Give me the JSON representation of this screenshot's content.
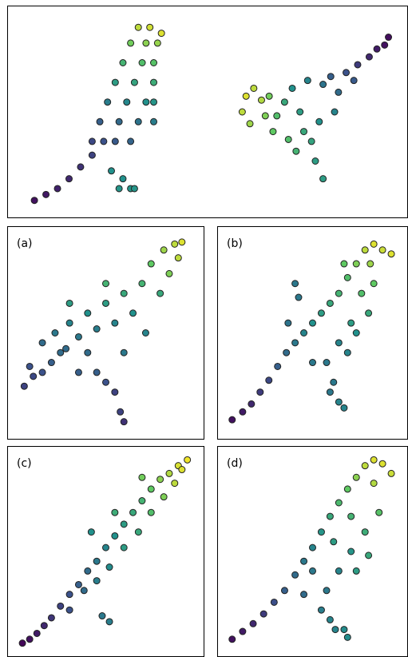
{
  "chart_data": [
    {
      "type": "scatter",
      "colormap": "viridis",
      "xlim": [
        0,
        100
      ],
      "ylim": [
        0,
        100
      ],
      "x": [
        5,
        8,
        11,
        14,
        17,
        20,
        23,
        20,
        26,
        30,
        22,
        27,
        32,
        36,
        24,
        29,
        34,
        36,
        26,
        31,
        36,
        28,
        33,
        36,
        30,
        34,
        37,
        32,
        35,
        38,
        25,
        28,
        27,
        30,
        31,
        59,
        60,
        62,
        64,
        61,
        65,
        67,
        66,
        70,
        72,
        74,
        75,
        73,
        77,
        78,
        80,
        79,
        76,
        80,
        82,
        84,
        83,
        86,
        89,
        92,
        94,
        96,
        97,
        88,
        68,
        71
      ],
      "y": [
        5,
        8,
        11,
        16,
        22,
        28,
        35,
        35,
        35,
        35,
        45,
        45,
        45,
        45,
        55,
        55,
        55,
        55,
        65,
        65,
        65,
        75,
        75,
        75,
        85,
        85,
        85,
        93,
        93,
        90,
        20,
        16,
        11,
        11,
        11,
        50,
        58,
        62,
        56,
        44,
        48,
        40,
        58,
        55,
        62,
        50,
        40,
        30,
        35,
        25,
        16,
        45,
        66,
        64,
        68,
        60,
        50,
        70,
        74,
        78,
        82,
        84,
        88,
        66,
        48,
        36
      ],
      "values": [
        0.05,
        0.07,
        0.1,
        0.12,
        0.15,
        0.2,
        0.25,
        0.22,
        0.28,
        0.32,
        0.3,
        0.34,
        0.38,
        0.42,
        0.42,
        0.46,
        0.5,
        0.52,
        0.55,
        0.58,
        0.62,
        0.65,
        0.7,
        0.72,
        0.78,
        0.82,
        0.84,
        0.9,
        0.93,
        0.95,
        0.5,
        0.5,
        0.52,
        0.52,
        0.52,
        0.9,
        0.95,
        0.9,
        0.88,
        0.85,
        0.8,
        0.75,
        0.78,
        0.6,
        0.5,
        0.55,
        0.6,
        0.65,
        0.58,
        0.55,
        0.55,
        0.5,
        0.45,
        0.38,
        0.3,
        0.35,
        0.45,
        0.25,
        0.18,
        0.12,
        0.08,
        0.05,
        0.04,
        0.28,
        0.7,
        0.7
      ]
    },
    {
      "type": "scatter",
      "title": "(a)",
      "colormap": "viridis",
      "xlim": [
        0,
        100
      ],
      "ylim": [
        0,
        100
      ],
      "x": [
        5,
        10,
        8,
        15,
        20,
        25,
        15,
        22,
        30,
        28,
        35,
        40,
        45,
        50,
        55,
        60,
        65,
        70,
        72,
        75,
        80,
        82,
        88,
        92,
        90,
        85,
        45,
        50,
        55,
        58,
        60,
        35,
        40,
        60,
        30,
        50
      ],
      "y": [
        23,
        28,
        33,
        30,
        35,
        40,
        45,
        50,
        55,
        42,
        48,
        60,
        52,
        65,
        55,
        70,
        60,
        75,
        50,
        85,
        70,
        92,
        95,
        96,
        88,
        80,
        30,
        25,
        20,
        10,
        5,
        30,
        40,
        40,
        65,
        75
      ],
      "values": [
        0.2,
        0.22,
        0.25,
        0.25,
        0.3,
        0.35,
        0.35,
        0.4,
        0.45,
        0.35,
        0.4,
        0.5,
        0.42,
        0.55,
        0.45,
        0.6,
        0.5,
        0.65,
        0.45,
        0.75,
        0.6,
        0.85,
        0.9,
        0.95,
        0.9,
        0.8,
        0.3,
        0.25,
        0.2,
        0.2,
        0.15,
        0.3,
        0.35,
        0.4,
        0.55,
        0.65
      ]
    },
    {
      "type": "scatter",
      "title": "(b)",
      "colormap": "viridis",
      "xlim": [
        0,
        100
      ],
      "ylim": [
        0,
        100
      ],
      "x": [
        4,
        10,
        15,
        20,
        25,
        30,
        35,
        40,
        45,
        50,
        55,
        60,
        65,
        70,
        75,
        80,
        85,
        90,
        95,
        83,
        78,
        82,
        72,
        65,
        58,
        70,
        75,
        62,
        60,
        65,
        68,
        40,
        42,
        36,
        50,
        68,
        85
      ],
      "y": [
        6,
        10,
        14,
        20,
        26,
        33,
        40,
        45,
        50,
        55,
        60,
        65,
        70,
        78,
        85,
        92,
        95,
        92,
        90,
        85,
        70,
        60,
        55,
        45,
        35,
        40,
        50,
        25,
        20,
        15,
        12,
        75,
        68,
        55,
        35,
        85,
        75
      ],
      "values": [
        0.05,
        0.08,
        0.12,
        0.18,
        0.22,
        0.3,
        0.35,
        0.4,
        0.45,
        0.5,
        0.55,
        0.6,
        0.65,
        0.7,
        0.8,
        0.9,
        0.95,
        0.92,
        0.95,
        0.85,
        0.7,
        0.6,
        0.55,
        0.45,
        0.4,
        0.45,
        0.5,
        0.4,
        0.4,
        0.45,
        0.45,
        0.4,
        0.4,
        0.38,
        0.4,
        0.75,
        0.75
      ]
    },
    {
      "type": "scatter",
      "title": "(c)",
      "colormap": "viridis",
      "xlim": [
        0,
        100
      ],
      "ylim": [
        0,
        100
      ],
      "x": [
        4,
        8,
        12,
        16,
        20,
        25,
        30,
        35,
        40,
        45,
        50,
        55,
        60,
        65,
        70,
        75,
        80,
        85,
        90,
        95,
        92,
        88,
        82,
        75,
        68,
        60,
        52,
        45,
        38,
        30,
        48,
        52,
        42,
        55,
        70
      ],
      "y": [
        3,
        5,
        8,
        12,
        16,
        22,
        28,
        33,
        40,
        45,
        52,
        58,
        64,
        70,
        76,
        82,
        87,
        90,
        94,
        97,
        92,
        85,
        78,
        70,
        60,
        52,
        42,
        35,
        30,
        20,
        17,
        14,
        60,
        70,
        88
      ],
      "values": [
        0.02,
        0.05,
        0.08,
        0.12,
        0.16,
        0.2,
        0.25,
        0.3,
        0.35,
        0.4,
        0.45,
        0.5,
        0.55,
        0.6,
        0.65,
        0.75,
        0.82,
        0.88,
        0.94,
        0.98,
        0.95,
        0.9,
        0.8,
        0.7,
        0.6,
        0.55,
        0.48,
        0.42,
        0.35,
        0.25,
        0.4,
        0.42,
        0.5,
        0.62,
        0.78
      ]
    },
    {
      "type": "scatter",
      "title": "(d)",
      "colormap": "viridis",
      "xlim": [
        0,
        100
      ],
      "ylim": [
        0,
        100
      ],
      "x": [
        4,
        10,
        16,
        22,
        28,
        34,
        40,
        45,
        50,
        55,
        60,
        65,
        70,
        75,
        80,
        85,
        90,
        95,
        85,
        88,
        80,
        72,
        65,
        58,
        45,
        55,
        60,
        63,
        68,
        70,
        75,
        82,
        50,
        62,
        72
      ],
      "y": [
        5,
        9,
        13,
        18,
        24,
        30,
        38,
        45,
        52,
        60,
        68,
        75,
        82,
        88,
        94,
        97,
        95,
        90,
        85,
        70,
        60,
        50,
        40,
        30,
        28,
        20,
        15,
        10,
        10,
        6,
        40,
        48,
        40,
        55,
        68
      ],
      "values": [
        0.05,
        0.08,
        0.12,
        0.18,
        0.24,
        0.3,
        0.35,
        0.4,
        0.45,
        0.52,
        0.6,
        0.68,
        0.75,
        0.82,
        0.9,
        0.95,
        0.95,
        0.92,
        0.88,
        0.72,
        0.62,
        0.52,
        0.45,
        0.4,
        0.35,
        0.42,
        0.45,
        0.45,
        0.48,
        0.48,
        0.55,
        0.6,
        0.4,
        0.55,
        0.65
      ]
    }
  ]
}
